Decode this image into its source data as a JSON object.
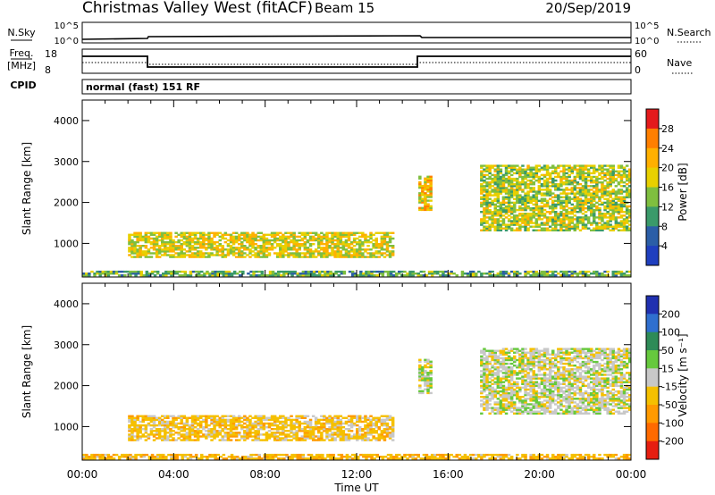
{
  "header": {
    "title": "Christmas Valley West (fitACF)",
    "beam": "Beam 15",
    "date": "20/Sep/2019"
  },
  "noise_panel": {
    "left_label": "N.Sky",
    "right_label": "N.Search",
    "left_ticks": [
      "10^5",
      "10^0"
    ],
    "right_ticks": [
      "10^5",
      "10^0"
    ]
  },
  "freq_panel": {
    "left_label_top": "Freq.",
    "left_label_bottom": "[MHz]",
    "left_ticks": [
      "18",
      "8"
    ],
    "right_ticks": [
      "60",
      "0"
    ],
    "right_label": "Nave",
    "cpid_label": "CPID"
  },
  "cpid_text": "normal (fast) 151 RF",
  "x_axis": {
    "label": "Time UT",
    "ticks": [
      "00:00",
      "04:00",
      "08:00",
      "12:00",
      "16:00",
      "20:00",
      "00:00"
    ]
  },
  "power_colorbar": {
    "label": "Power [dB]",
    "ticks": [
      "28",
      "24",
      "20",
      "16",
      "12",
      "8",
      "4"
    ],
    "colors": [
      "#e41a1c",
      "#ff7f00",
      "#ffb000",
      "#e8d000",
      "#7fbf3f",
      "#3a9a6a",
      "#2b5ea7",
      "#1f3fbf"
    ]
  },
  "velocity_colorbar": {
    "label": "Velocity [m s⁻¹]",
    "ticks": [
      "200",
      "100",
      "50",
      "15",
      "-15",
      "-50",
      "-100",
      "-200"
    ],
    "colors": [
      "#2030b0",
      "#2f6fcf",
      "#2e8b57",
      "#66c93d",
      "#c8c8c8",
      "#f5c000",
      "#ff9a00",
      "#ff6a00",
      "#e61e10"
    ]
  },
  "chart_data": [
    {
      "type": "heatmap",
      "title": "Power",
      "xlabel": "Time UT",
      "ylabel": "Slant Range [km]",
      "xlim": [
        "00:00",
        "24:00"
      ],
      "ylim": [
        180,
        4500
      ],
      "yticks": [
        1000,
        2000,
        3000,
        4000
      ],
      "regions": [
        {
          "t_start": 0.0,
          "t_end": 24.0,
          "range_min": 200,
          "range_max": 330,
          "power_db": 12
        },
        {
          "t_start": 2.0,
          "t_end": 13.6,
          "range_min": 650,
          "range_max": 1280,
          "power_db": 18
        },
        {
          "t_start": 14.7,
          "t_end": 15.2,
          "range_min": 1800,
          "range_max": 2650,
          "power_db": 20
        },
        {
          "t_start": 17.4,
          "t_end": 24.0,
          "range_min": 1300,
          "range_max": 2900,
          "power_db": 16
        }
      ]
    },
    {
      "type": "heatmap",
      "title": "Velocity",
      "xlabel": "Time UT",
      "ylabel": "Slant Range [km]",
      "xlim": [
        "00:00",
        "24:00"
      ],
      "ylim": [
        180,
        4500
      ],
      "yticks": [
        1000,
        2000,
        3000,
        4000
      ],
      "regions": [
        {
          "t_start": 0.0,
          "t_end": 24.0,
          "range_min": 200,
          "range_max": 330,
          "velocity": -40
        },
        {
          "t_start": 2.0,
          "t_end": 13.6,
          "range_min": 650,
          "range_max": 1280,
          "velocity": -30
        },
        {
          "t_start": 14.7,
          "t_end": 15.2,
          "range_min": 1800,
          "range_max": 2650,
          "velocity": 0
        },
        {
          "t_start": 17.4,
          "t_end": 24.0,
          "range_min": 1300,
          "range_max": 2900,
          "velocity": 0
        }
      ]
    }
  ]
}
